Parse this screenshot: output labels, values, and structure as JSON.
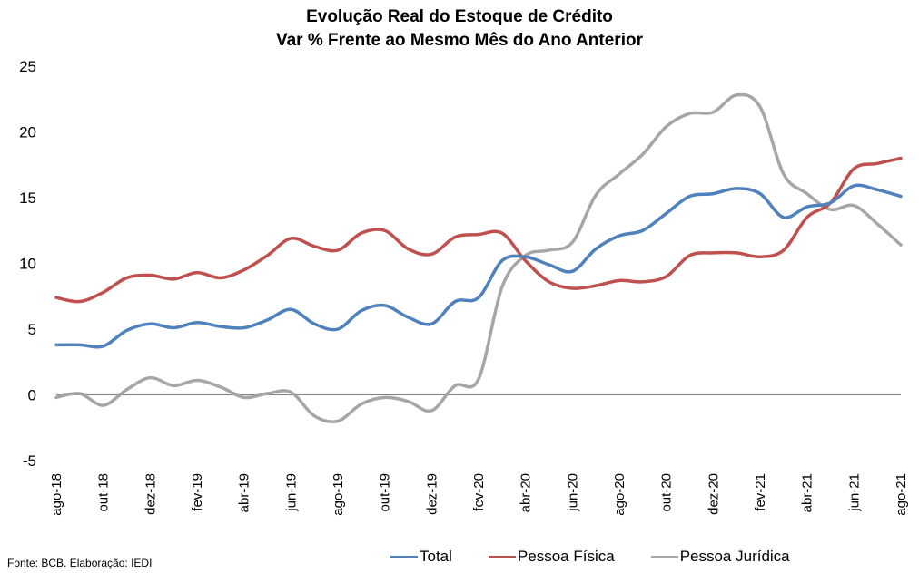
{
  "chart_data": {
    "type": "line",
    "title": "Evolução Real do Estoque de Crédito",
    "subtitle": "Var % Frente ao Mesmo Mês do Ano Anterior",
    "categories": [
      "ago-18",
      "set-18",
      "out-18",
      "nov-18",
      "dez-18",
      "jan-19",
      "fev-19",
      "mar-19",
      "abr-19",
      "mai-19",
      "jun-19",
      "jul-19",
      "ago-19",
      "set-19",
      "out-19",
      "nov-19",
      "dez-19",
      "jan-20",
      "fev-20",
      "mar-20",
      "abr-20",
      "mai-20",
      "jun-20",
      "jul-20",
      "ago-20",
      "set-20",
      "out-20",
      "nov-20",
      "dez-20",
      "jan-21",
      "fev-21",
      "mar-21",
      "abr-21",
      "mai-21",
      "jun-21",
      "jul-21",
      "ago-21"
    ],
    "tick_labels": [
      "ago-18",
      "out-18",
      "dez-18",
      "fev-19",
      "abr-19",
      "jun-19",
      "ago-19",
      "out-19",
      "dez-19",
      "fev-20",
      "abr-20",
      "jun-20",
      "ago-20",
      "out-20",
      "dez-20",
      "fev-21",
      "abr-21",
      "jun-21",
      "ago-21"
    ],
    "ylim": [
      -5,
      25
    ],
    "yticks": [
      -5,
      0,
      5,
      10,
      15,
      20,
      25
    ],
    "series": [
      {
        "name": "Total",
        "color": "#4F81BD",
        "values": [
          3.8,
          3.8,
          3.7,
          4.9,
          5.4,
          5.1,
          5.5,
          5.2,
          5.1,
          5.7,
          6.5,
          5.4,
          5.0,
          6.4,
          6.8,
          5.9,
          5.4,
          7.1,
          7.4,
          10.2,
          10.5,
          9.9,
          9.4,
          11.1,
          12.1,
          12.5,
          13.8,
          15.1,
          15.3,
          15.7,
          15.3,
          13.5,
          14.3,
          14.6,
          15.9,
          15.6,
          15.1
        ]
      },
      {
        "name": "Pessoa Física",
        "color": "#C0504D",
        "values": [
          7.4,
          7.1,
          7.8,
          8.9,
          9.1,
          8.8,
          9.3,
          8.9,
          9.5,
          10.6,
          11.9,
          11.3,
          11.0,
          12.3,
          12.5,
          11.1,
          10.7,
          12.0,
          12.2,
          12.3,
          10.2,
          8.6,
          8.1,
          8.3,
          8.7,
          8.6,
          9.0,
          10.6,
          10.8,
          10.8,
          10.5,
          11.0,
          13.5,
          14.6,
          17.2,
          17.6,
          18.0
        ]
      },
      {
        "name": "Pessoa Jurídica",
        "color": "#A6A6A6",
        "values": [
          -0.2,
          0.1,
          -0.8,
          0.4,
          1.3,
          0.7,
          1.1,
          0.6,
          -0.2,
          0.1,
          0.2,
          -1.6,
          -2.0,
          -0.7,
          -0.2,
          -0.5,
          -1.2,
          0.7,
          1.2,
          8.2,
          10.6,
          11.0,
          11.6,
          15.2,
          16.8,
          18.3,
          20.4,
          21.4,
          21.5,
          22.8,
          21.9,
          16.8,
          15.3,
          14.1,
          14.4,
          13.0,
          11.4
        ]
      }
    ],
    "legend_position": "bottom",
    "grid": false
  },
  "footer": {
    "source": "Fonte: BCB. Elaboração: IEDI"
  }
}
